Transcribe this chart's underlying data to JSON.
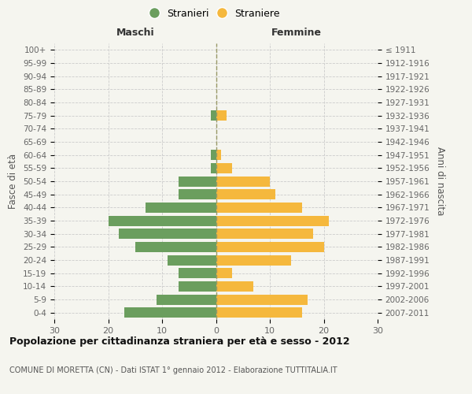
{
  "age_groups": [
    "0-4",
    "5-9",
    "10-14",
    "15-19",
    "20-24",
    "25-29",
    "30-34",
    "35-39",
    "40-44",
    "45-49",
    "50-54",
    "55-59",
    "60-64",
    "65-69",
    "70-74",
    "75-79",
    "80-84",
    "85-89",
    "90-94",
    "95-99",
    "100+"
  ],
  "birth_years": [
    "2007-2011",
    "2002-2006",
    "1997-2001",
    "1992-1996",
    "1987-1991",
    "1982-1986",
    "1977-1981",
    "1972-1976",
    "1967-1971",
    "1962-1966",
    "1957-1961",
    "1952-1956",
    "1947-1951",
    "1942-1946",
    "1937-1941",
    "1932-1936",
    "1927-1931",
    "1922-1926",
    "1917-1921",
    "1912-1916",
    "≤ 1911"
  ],
  "maschi": [
    17,
    11,
    7,
    7,
    9,
    15,
    18,
    20,
    13,
    7,
    7,
    1,
    1,
    0,
    0,
    1,
    0,
    0,
    0,
    0,
    0
  ],
  "femmine": [
    16,
    17,
    7,
    3,
    14,
    20,
    18,
    21,
    16,
    11,
    10,
    3,
    1,
    0,
    0,
    2,
    0,
    0,
    0,
    0,
    0
  ],
  "maschi_color": "#6b9e5e",
  "femmine_color": "#f5b83d",
  "background_color": "#f5f5ef",
  "grid_color": "#cccccc",
  "title": "Popolazione per cittadinanza straniera per età e sesso - 2012",
  "subtitle": "COMUNE DI MORETTA (CN) - Dati ISTAT 1° gennaio 2012 - Elaborazione TUTTITALIA.IT",
  "ylabel_left": "Fasce di età",
  "ylabel_right": "Anni di nascita",
  "header_left": "Maschi",
  "header_right": "Femmine",
  "xlim": 30,
  "legend_stranieri": "Stranieri",
  "legend_straniere": "Straniere"
}
